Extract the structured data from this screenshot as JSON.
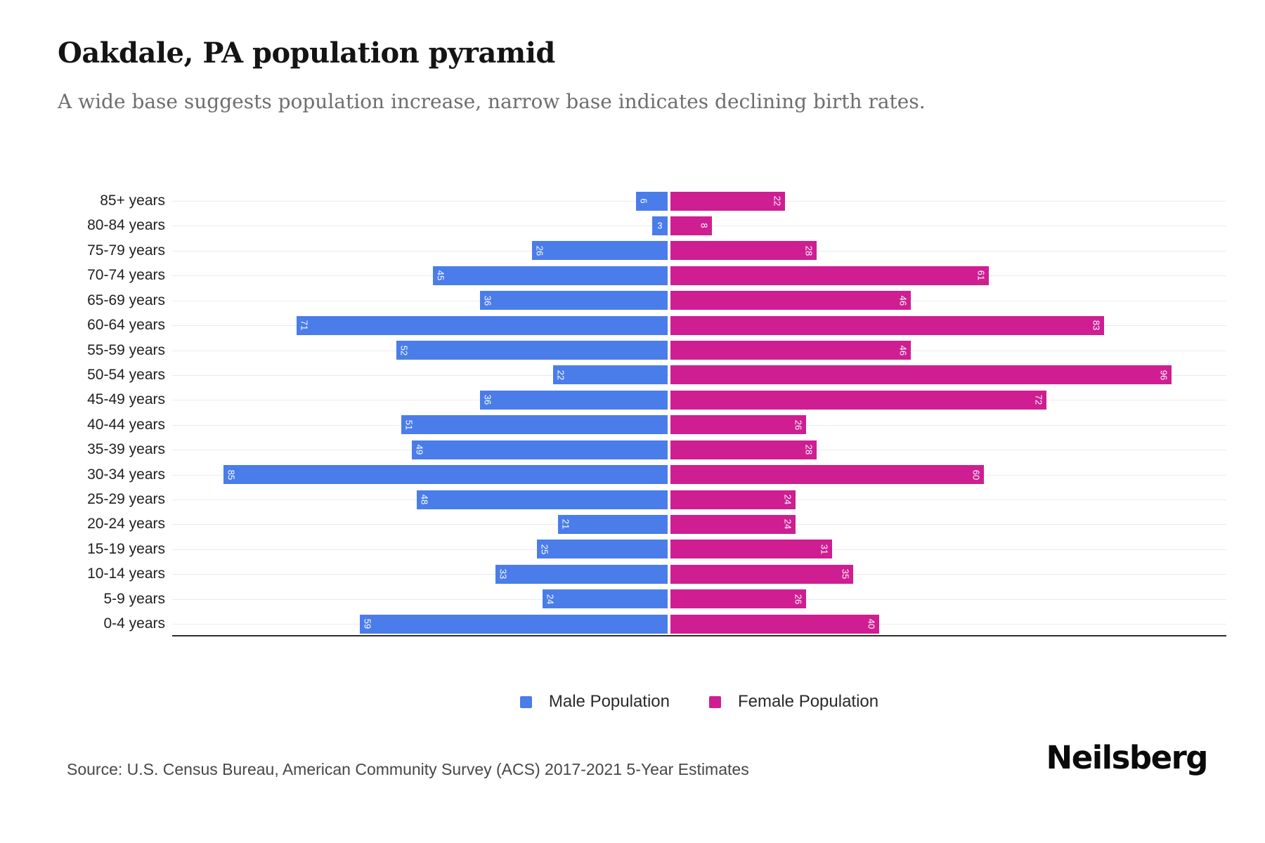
{
  "title": "Oakdale, PA population pyramid",
  "subtitle": "A wide base suggests population increase, narrow base indicates declining birth rates.",
  "chart_data": {
    "type": "bar",
    "variant": "population-pyramid",
    "orientation": "horizontal",
    "categories": [
      "85+ years",
      "80-84 years",
      "75-79 years",
      "70-74 years",
      "65-69 years",
      "60-64 years",
      "55-59 years",
      "50-54 years",
      "45-49 years",
      "40-44 years",
      "35-39 years",
      "30-34 years",
      "25-29 years",
      "20-24 years",
      "15-19 years",
      "10-14 years",
      "5-9 years",
      "0-4 years"
    ],
    "series": [
      {
        "name": "Male Population",
        "side": "left",
        "color": "#4a7de9",
        "values": [
          6,
          3,
          26,
          45,
          36,
          71,
          52,
          22,
          36,
          51,
          49,
          85,
          48,
          21,
          25,
          33,
          24,
          59
        ]
      },
      {
        "name": "Female Population",
        "side": "right",
        "color": "#ce1e92",
        "values": [
          22,
          8,
          28,
          61,
          46,
          83,
          46,
          96,
          72,
          26,
          28,
          60,
          24,
          24,
          31,
          35,
          26,
          40
        ]
      }
    ],
    "value_labels": "inside-bar-end, rotated 90deg, white",
    "axis_max_each_side": 100,
    "grid": "horizontal category gridlines",
    "legend_position": "bottom-center"
  },
  "legend": {
    "items": [
      {
        "label": "Male Population",
        "color": "#4a7de9"
      },
      {
        "label": "Female Population",
        "color": "#ce1e92"
      }
    ]
  },
  "footer": {
    "source": "Source: U.S. Census Bureau, American Community Survey (ACS) 2017-2021 5-Year Estimates",
    "brand": "Neilsberg"
  }
}
